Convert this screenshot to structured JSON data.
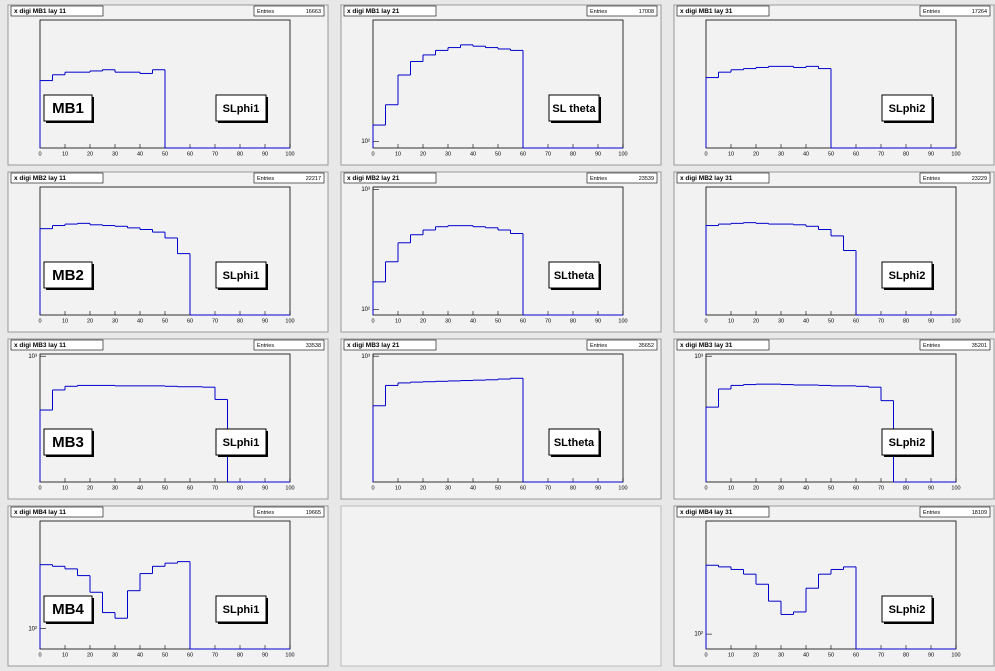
{
  "chart_data": [
    {
      "type": "histogram",
      "title": "x digi MB1 lay 11",
      "stats": {
        "label": "Entries",
        "value": 16663
      },
      "detector_label": "MB1",
      "layer_label": "SLphi1",
      "color": "#0000cc",
      "log_y": true,
      "bins": [
        0,
        5,
        10,
        15,
        20,
        25,
        30,
        35,
        40,
        45,
        50,
        55,
        60,
        65,
        70,
        75,
        80,
        85,
        90,
        95,
        100
      ],
      "values": [
        120,
        140,
        150,
        150,
        155,
        160,
        150,
        150,
        145,
        160,
        0,
        0,
        0,
        0,
        0,
        0,
        0,
        0,
        0,
        0
      ],
      "xlim": [
        0,
        100
      ],
      "xticks": [
        0,
        10,
        20,
        30,
        40,
        50,
        60,
        70,
        80,
        90,
        100
      ],
      "ylim": [
        20,
        600
      ],
      "yticks": []
    },
    {
      "type": "histogram",
      "title": "x digi MB1 lay 21",
      "stats": {
        "label": "Entries",
        "value": 17008
      },
      "detector_label": null,
      "layer_label": "SL theta",
      "color": "#0000cc",
      "log_y": true,
      "bins": [
        0,
        5,
        10,
        15,
        20,
        25,
        30,
        35,
        40,
        45,
        50,
        55,
        60,
        65,
        70,
        75,
        80,
        85,
        90,
        95,
        100
      ],
      "values": [
        130,
        180,
        290,
        360,
        400,
        430,
        450,
        470,
        460,
        450,
        440,
        430,
        0,
        0,
        0,
        0,
        0,
        0,
        0,
        0
      ],
      "xlim": [
        0,
        100
      ],
      "xticks": [
        0,
        10,
        20,
        30,
        40,
        50,
        60,
        70,
        80,
        90,
        100
      ],
      "ylim": [
        90,
        700
      ],
      "yticks": [
        {
          "value": 100,
          "label": "10²"
        }
      ]
    },
    {
      "type": "histogram",
      "title": "x digi MB1 lay 31",
      "stats": {
        "label": "Entries",
        "value": 17264
      },
      "detector_label": null,
      "layer_label": "SLphi2",
      "color": "#0000cc",
      "log_y": true,
      "bins": [
        0,
        5,
        10,
        15,
        20,
        25,
        30,
        35,
        40,
        45,
        50,
        55,
        60,
        65,
        70,
        75,
        80,
        85,
        90,
        95,
        100
      ],
      "values": [
        130,
        150,
        160,
        165,
        170,
        175,
        175,
        170,
        175,
        165,
        0,
        0,
        0,
        0,
        0,
        0,
        0,
        0,
        0,
        0
      ],
      "xlim": [
        0,
        100
      ],
      "xticks": [
        0,
        10,
        20,
        30,
        40,
        50,
        60,
        70,
        80,
        90,
        100
      ],
      "ylim": [
        20,
        600
      ],
      "yticks": []
    },
    {
      "type": "histogram",
      "title": "x digi MB2 lay 11",
      "stats": {
        "label": "Entries",
        "value": 22217
      },
      "detector_label": "MB2",
      "layer_label": "SLphi1",
      "color": "#0000cc",
      "log_y": true,
      "bins": [
        0,
        5,
        10,
        15,
        20,
        25,
        30,
        35,
        40,
        45,
        50,
        55,
        60,
        65,
        70,
        75,
        80,
        85,
        90,
        95,
        100
      ],
      "values": [
        220,
        240,
        250,
        255,
        245,
        240,
        235,
        225,
        215,
        200,
        170,
        110,
        0,
        0,
        0,
        0,
        0,
        0,
        0,
        0
      ],
      "xlim": [
        0,
        100
      ],
      "xticks": [
        0,
        10,
        20,
        30,
        40,
        50,
        60,
        70,
        80,
        90,
        100
      ],
      "ylim": [
        20,
        700
      ],
      "yticks": []
    },
    {
      "type": "histogram",
      "title": "x digi MB2 lay 21",
      "stats": {
        "label": "Entries",
        "value": 23539
      },
      "detector_label": null,
      "layer_label": "SLtheta",
      "color": "#0000cc",
      "log_y": true,
      "bins": [
        0,
        5,
        10,
        15,
        20,
        25,
        30,
        35,
        40,
        45,
        50,
        55,
        60,
        65,
        70,
        75,
        80,
        85,
        90,
        95,
        100
      ],
      "values": [
        170,
        250,
        360,
        420,
        460,
        490,
        500,
        500,
        490,
        480,
        460,
        430,
        0,
        0,
        0,
        0,
        0,
        0,
        0,
        0
      ],
      "xlim": [
        0,
        100
      ],
      "xticks": [
        0,
        10,
        20,
        30,
        40,
        50,
        60,
        70,
        80,
        90,
        100
      ],
      "ylim": [
        90,
        1050
      ],
      "yticks": [
        {
          "value": 100,
          "label": "10²"
        },
        {
          "value": 1000,
          "label": "10³"
        }
      ]
    },
    {
      "type": "histogram",
      "title": "x digi MB2 lay 31",
      "stats": {
        "label": "Entries",
        "value": 23229
      },
      "detector_label": null,
      "layer_label": "SLphi2",
      "color": "#0000cc",
      "log_y": true,
      "bins": [
        0,
        5,
        10,
        15,
        20,
        25,
        30,
        35,
        40,
        45,
        50,
        55,
        60,
        65,
        70,
        75,
        80,
        85,
        90,
        95,
        100
      ],
      "values": [
        240,
        250,
        255,
        260,
        255,
        250,
        250,
        245,
        235,
        215,
        180,
        120,
        0,
        0,
        0,
        0,
        0,
        0,
        0,
        0
      ],
      "xlim": [
        0,
        100
      ],
      "xticks": [
        0,
        10,
        20,
        30,
        40,
        50,
        60,
        70,
        80,
        90,
        100
      ],
      "ylim": [
        20,
        700
      ],
      "yticks": []
    },
    {
      "type": "histogram",
      "title": "x digi MB3 lay 11",
      "stats": {
        "label": "Entries",
        "value": 33538
      },
      "detector_label": "MB3",
      "layer_label": "SLphi1",
      "color": "#0000cc",
      "log_y": true,
      "bins": [
        0,
        5,
        10,
        15,
        20,
        25,
        30,
        35,
        40,
        45,
        50,
        55,
        60,
        65,
        70,
        75,
        80,
        85,
        90,
        95,
        100
      ],
      "values": [
        300,
        470,
        510,
        520,
        520,
        520,
        515,
        515,
        515,
        515,
        510,
        505,
        505,
        500,
        380,
        0,
        0,
        0,
        0,
        0
      ],
      "xlim": [
        0,
        100
      ],
      "xticks": [
        0,
        10,
        20,
        30,
        40,
        50,
        60,
        70,
        80,
        90,
        100
      ],
      "ylim": [
        60,
        1050
      ],
      "yticks": [
        {
          "value": 1000,
          "label": "10³"
        }
      ]
    },
    {
      "type": "histogram",
      "title": "x digi MB3 lay 21",
      "stats": {
        "label": "Entries",
        "value": 35652
      },
      "detector_label": null,
      "layer_label": "SLtheta",
      "color": "#0000cc",
      "log_y": true,
      "bins": [
        0,
        5,
        10,
        15,
        20,
        25,
        30,
        35,
        40,
        45,
        50,
        55,
        60,
        65,
        70,
        75,
        80,
        85,
        90,
        95,
        100
      ],
      "values": [
        330,
        520,
        550,
        560,
        565,
        570,
        575,
        580,
        585,
        590,
        600,
        610,
        0,
        0,
        0,
        0,
        0,
        0,
        0,
        0
      ],
      "xlim": [
        0,
        100
      ],
      "xticks": [
        0,
        10,
        20,
        30,
        40,
        50,
        60,
        70,
        80,
        90,
        100
      ],
      "ylim": [
        60,
        1050
      ],
      "yticks": [
        {
          "value": 1000,
          "label": "10³"
        }
      ]
    },
    {
      "type": "histogram",
      "title": "x digi MB3 lay 31",
      "stats": {
        "label": "Entries",
        "value": 35201
      },
      "detector_label": null,
      "layer_label": "SLphi2",
      "color": "#0000cc",
      "log_y": true,
      "bins": [
        0,
        5,
        10,
        15,
        20,
        25,
        30,
        35,
        40,
        45,
        50,
        55,
        60,
        65,
        70,
        75,
        80,
        85,
        90,
        95,
        100
      ],
      "values": [
        320,
        480,
        520,
        530,
        535,
        535,
        530,
        525,
        525,
        520,
        515,
        515,
        510,
        500,
        370,
        0,
        0,
        0,
        0,
        0
      ],
      "xlim": [
        0,
        100
      ],
      "xticks": [
        0,
        10,
        20,
        30,
        40,
        50,
        60,
        70,
        80,
        90,
        100
      ],
      "ylim": [
        60,
        1050
      ],
      "yticks": [
        {
          "value": 1000,
          "label": "10³"
        }
      ]
    },
    {
      "type": "histogram",
      "title": "x digi MB4 lay 11",
      "stats": {
        "label": "Entries",
        "value": 19665
      },
      "detector_label": "MB4",
      "layer_label": "SLphi1",
      "color": "#0000cc",
      "log_y": true,
      "bins": [
        0,
        5,
        10,
        15,
        20,
        25,
        30,
        35,
        40,
        45,
        50,
        55,
        60,
        65,
        70,
        75,
        80,
        85,
        90,
        95,
        100
      ],
      "values": [
        500,
        480,
        450,
        380,
        250,
        150,
        130,
        260,
        400,
        480,
        520,
        540,
        0,
        0,
        0,
        0,
        0,
        0,
        0,
        0
      ],
      "xlim": [
        0,
        100
      ],
      "xticks": [
        0,
        10,
        20,
        30,
        40,
        50,
        60,
        70,
        80,
        90,
        100
      ],
      "ylim": [
        60,
        1500
      ],
      "yticks": [
        {
          "value": 100,
          "label": "10²"
        }
      ]
    },
    {
      "type": "histogram",
      "title": "x digi MB4 lay 31",
      "stats": {
        "label": "Entries",
        "value": 18109
      },
      "detector_label": null,
      "layer_label": "SLphi2",
      "color": "#0000cc",
      "log_y": true,
      "bins": [
        0,
        5,
        10,
        15,
        20,
        25,
        30,
        35,
        40,
        45,
        50,
        55,
        60,
        65,
        70,
        75,
        80,
        85,
        90,
        95,
        100
      ],
      "values": [
        520,
        500,
        470,
        420,
        330,
        220,
        160,
        170,
        300,
        420,
        470,
        500,
        0,
        0,
        0,
        0,
        0,
        0,
        0,
        0
      ],
      "xlim": [
        0,
        100
      ],
      "xticks": [
        0,
        10,
        20,
        30,
        40,
        50,
        60,
        70,
        80,
        90,
        100
      ],
      "ylim": [
        70,
        1500
      ],
      "yticks": [
        {
          "value": 100,
          "label": "10²"
        }
      ]
    }
  ]
}
